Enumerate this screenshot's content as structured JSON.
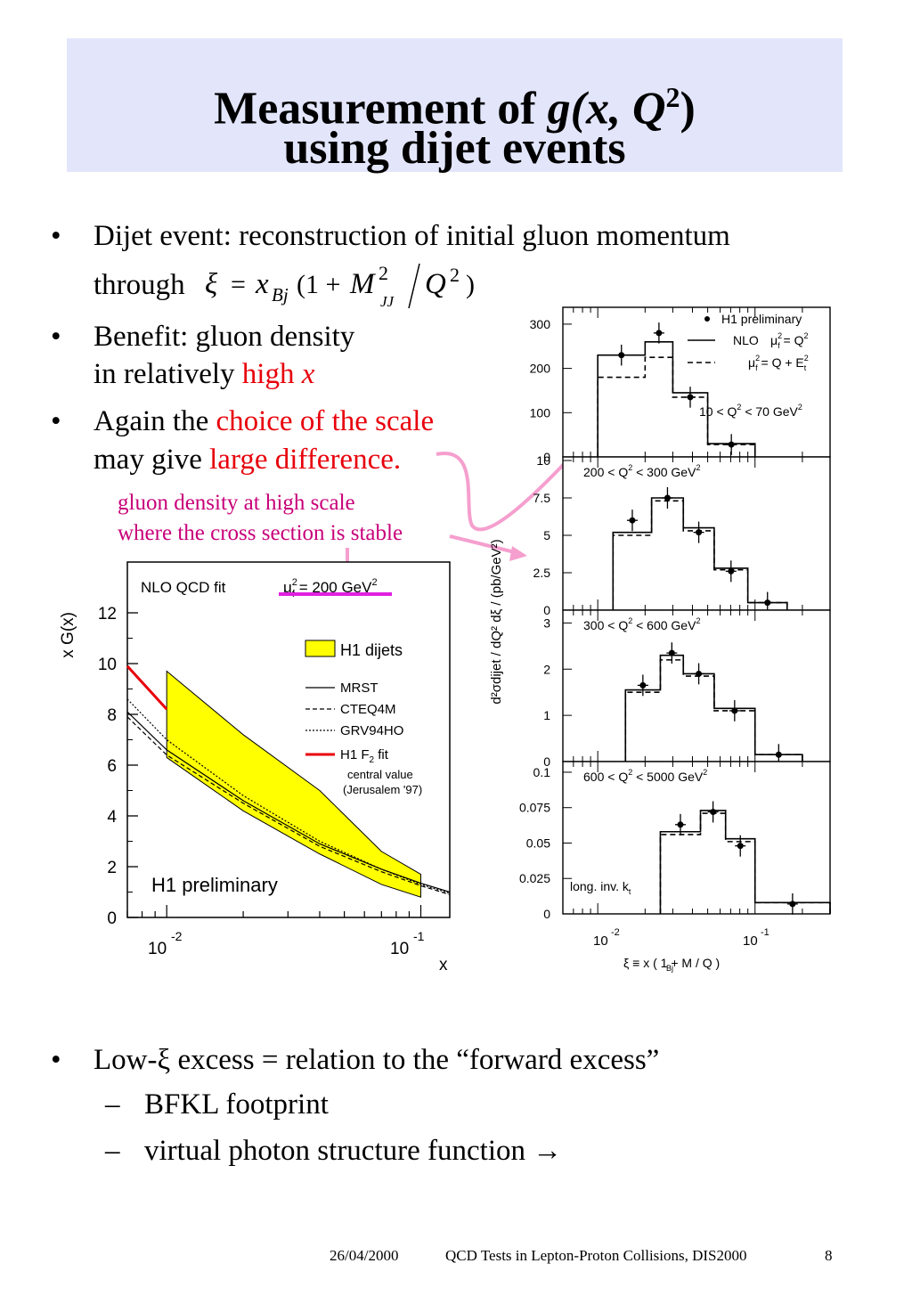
{
  "slide": {
    "title_line1_a": "Measurement of ",
    "title_g": "g",
    "title_args": "(x, Q",
    "title_sup": "2",
    "title_close": ")",
    "title_line2": "using dijet events"
  },
  "bullets": {
    "b1_line1": "Dijet event: reconstruction of initial gluon momentum",
    "b1_line2": "through",
    "formula": {
      "xi": "ξ",
      "eq": "=",
      "x": "x",
      "bj": "Bj",
      "open": "(1 + ",
      "M": "M",
      "two": "2",
      "jj": "JJ",
      "slash": "/",
      "Q": "Q",
      "q2": "2",
      "close": ")"
    },
    "b2_line1": "Benefit: gluon density",
    "b2_line2_a": "in relatively ",
    "b2_line2_b": "high ",
    "b2_line2_c": "x",
    "b3_line1_a": "Again the ",
    "b3_line1_b": "choice of the scale",
    "b3_line2_a": "may give ",
    "b3_line2_b": "large difference.",
    "b4_a": "Low-",
    "b4_xi": "ξ",
    "b4_b": " excess = relation to the “forward excess”",
    "sub1": "BFKL footprint",
    "sub2": "virtual photon structure function →",
    "dash": "–",
    "bullet_char": "•"
  },
  "annotation": {
    "line1": "gluon density at high scale",
    "line2": "where the cross section is stable"
  },
  "left_plot": {
    "ylabel": "x G(x)",
    "xlabel": "x",
    "fit_label": "NLO QCD fit",
    "scale_label": "μ",
    "scale_sup": "2",
    "scale_sub": "f",
    "scale_value": " = 200 GeV",
    "scale_unit_sup": "2",
    "legend_dijets": "H1 dijets",
    "legend_mrst": "MRST",
    "legend_cteq": "CTEQ4M",
    "legend_grv": "GRV94HO",
    "legend_f2": "H1  F",
    "legend_f2_sub": "2",
    "legend_f2_b": " fit",
    "legend_central": "central value",
    "legend_jerusalem": "(Jerusalem '97)",
    "watermark": "H1 preliminary",
    "yticks": [
      "0",
      "2",
      "4",
      "6",
      "8",
      "10",
      "12"
    ],
    "xtick1": "10",
    "xtick1_exp": "-2",
    "xtick2": "10",
    "xtick2_exp": "-1",
    "colors": {
      "band": "#ffff00",
      "f2": "#e8000b",
      "scale_line": "#e020e0"
    }
  },
  "right_plot": {
    "ylabel": "d²σdijet / dQ² dξ  /  (pb/GeV²)",
    "xlabel": "ξ  ≡  x   ( 1 + M    / Q  )",
    "xlabel_bj": "Bj",
    "legend_prelim": "H1 preliminary",
    "legend_nlo": "NLO",
    "legend_mu1": "μ",
    "legend_mu1_rest": " = Q",
    "legend_mu2_rest": " = Q + E",
    "xtick1": "10",
    "xtick1_exp": "-2",
    "xtick2": "10",
    "xtick2_exp": "-1",
    "panels": [
      {
        "label": "10 < Q  < 70 GeV",
        "yticks": [
          "0",
          "100",
          "200",
          "300"
        ]
      },
      {
        "label": "200 < Q  < 300 GeV",
        "yticks": [
          "0",
          "2.5",
          "5",
          "7.5",
          "10"
        ]
      },
      {
        "label": "300 < Q  < 600 GeV",
        "yticks": [
          "0",
          "1",
          "2",
          "3"
        ]
      },
      {
        "label": "600 < Q  < 5000 GeV",
        "yticks": [
          "0",
          "0.025",
          "0.05",
          "0.075",
          "0.1"
        ],
        "extra": "long. inv. k",
        "extra_sub": "t"
      }
    ]
  },
  "chart_data": [
    {
      "type": "area",
      "title": "NLO QCD fit",
      "xlabel": "x",
      "ylabel": "x G(x)",
      "xscale": "log",
      "xlim": [
        0.007,
        0.13
      ],
      "ylim": [
        0,
        14
      ],
      "series": [
        {
          "name": "H1 dijets",
          "kind": "band",
          "x": [
            0.01,
            0.02,
            0.04,
            0.07,
            0.1
          ],
          "low": [
            6.3,
            4.2,
            2.5,
            1.3,
            0.8
          ],
          "high": [
            9.7,
            7.2,
            5.0,
            2.6,
            1.7
          ]
        },
        {
          "name": "MRST",
          "x": [
            0.007,
            0.01,
            0.02,
            0.04,
            0.07,
            0.1,
            0.13
          ],
          "y": [
            8.1,
            6.6,
            4.6,
            2.9,
            1.9,
            1.35,
            1.0
          ]
        },
        {
          "name": "CTEQ4M",
          "x": [
            0.007,
            0.01,
            0.02,
            0.04,
            0.07,
            0.1,
            0.13
          ],
          "y": [
            7.9,
            6.4,
            4.5,
            2.8,
            1.8,
            1.25,
            0.9
          ]
        },
        {
          "name": "GRV94HO",
          "x": [
            0.007,
            0.01,
            0.02,
            0.04,
            0.07,
            0.1,
            0.13
          ],
          "y": [
            8.6,
            7.0,
            4.8,
            3.0,
            1.9,
            1.3,
            0.95
          ]
        },
        {
          "name": "H1  F2 fit",
          "x": [
            0.007,
            0.01
          ],
          "y": [
            9.9,
            8.2
          ]
        }
      ]
    },
    {
      "type": "bar",
      "title": "H1 preliminary",
      "xlabel": "ξ ≡ xBj ( 1 + M²jj / Q² )",
      "xscale": "log",
      "xlim": [
        0.006,
        0.3
      ],
      "bin_edges": [
        0.01,
        0.02,
        0.03,
        0.05,
        0.1
      ],
      "panels": [
        {
          "label": "10 < Q2 < 70 GeV2",
          "ylim": [
            0,
            330
          ],
          "nlo": [
            230,
            260,
            145,
            30
          ],
          "nlo_e": [
            180,
            225,
            135,
            28
          ],
          "data": [
            230,
            280,
            135,
            28
          ]
        },
        {
          "label": "200 < Q2 < 300 GeV2",
          "ylim": [
            0,
            10
          ],
          "nlo": [
            5.2,
            7.5,
            5.5,
            2.8,
            0.5
          ],
          "nlo_e": [
            5.0,
            7.3,
            5.3,
            2.7,
            0.5
          ],
          "data": [
            6.0,
            7.5,
            5.2,
            2.6,
            0.5
          ]
        },
        {
          "label": "300 < Q2 < 600 GeV2",
          "ylim": [
            0,
            3.2
          ],
          "nlo": [
            1.55,
            2.3,
            1.9,
            1.15,
            0.15
          ],
          "nlo_e": [
            1.5,
            2.2,
            1.85,
            1.1,
            0.15
          ],
          "data": [
            1.65,
            2.35,
            1.9,
            1.1,
            0.15
          ]
        },
        {
          "label": "600 < Q2 < 5000 GeV2",
          "ylim": [
            0,
            0.105
          ],
          "nlo": [
            0.058,
            0.073,
            0.053,
            0.008
          ],
          "nlo_e": [
            0.056,
            0.071,
            0.051,
            0.008
          ],
          "data": [
            0.063,
            0.072,
            0.048,
            0.007
          ]
        }
      ]
    }
  ],
  "footer": {
    "date": "26/04/2000",
    "title": "QCD Tests in Lepton-Proton Collisions, DIS2000",
    "page": "8"
  }
}
